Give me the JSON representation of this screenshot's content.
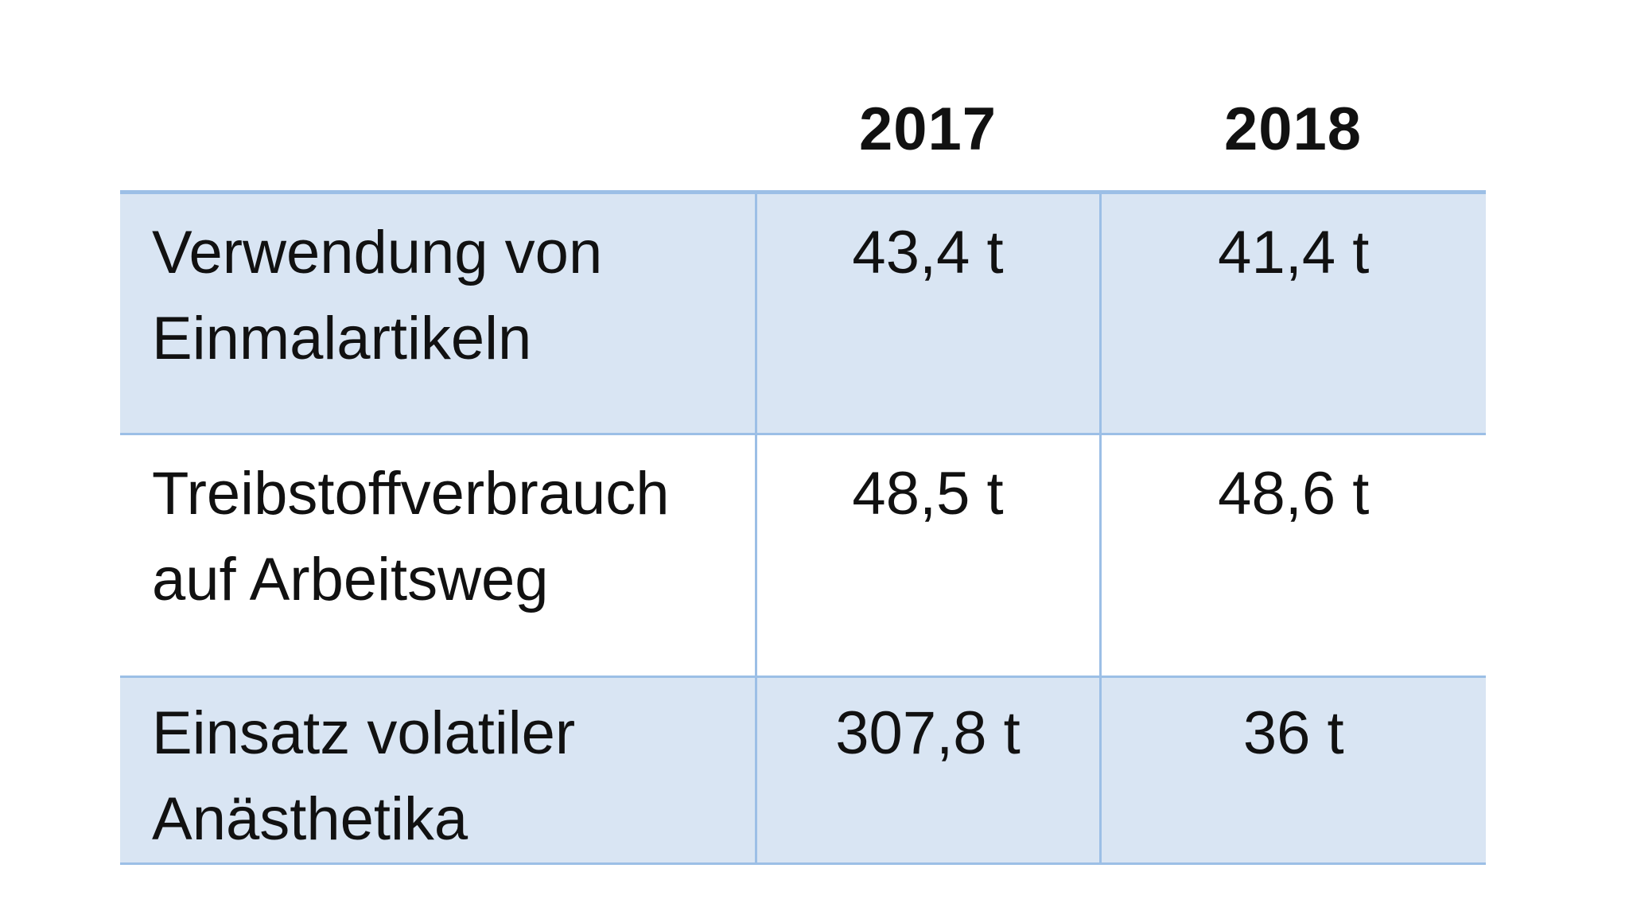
{
  "table": {
    "headers": [
      "",
      "2017",
      "2018"
    ],
    "rows": [
      {
        "label": "Verwendung von Einmalartikeln",
        "values": [
          "43,4 t",
          "41,4 t"
        ]
      },
      {
        "label": "Treibstoffverbrauch auf Arbeitsweg",
        "values": [
          "48,5 t",
          "48,6 t"
        ]
      },
      {
        "label": "Einsatz volatiler Anästhetika",
        "values": [
          "307,8 t",
          "36 t"
        ]
      }
    ]
  },
  "colors": {
    "row_shading": "#d9e5f3",
    "grid_lines": "#9cbfe6"
  }
}
